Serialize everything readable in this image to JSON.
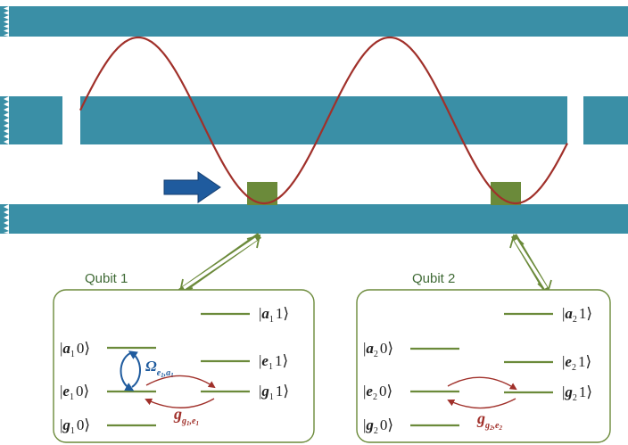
{
  "colors": {
    "waveguide": "#3a8fa6",
    "wave": "#a0302a",
    "atom": "#6b8a3a",
    "arrow_blue": "#1f5b9e",
    "box_border": "#6b8a3a",
    "level": "#6b8a3a",
    "omega_color": "#1f5b9e",
    "g_color": "#a0302a"
  },
  "icons": {
    "input_arrow": "right-arrow-icon",
    "coupling_arrow": "double-headed-arrow-icon"
  },
  "qubit1": {
    "title": "Qubit 1",
    "levels": {
      "a1": {
        "symbol": "a",
        "sub": "1",
        "photons": "1"
      },
      "a0": {
        "symbol": "a",
        "sub": "1",
        "photons": "0"
      },
      "e1": {
        "symbol": "e",
        "sub": "1",
        "photons": "1"
      },
      "e0": {
        "symbol": "e",
        "sub": "1",
        "photons": "0"
      },
      "g1": {
        "symbol": "g",
        "sub": "1",
        "photons": "1"
      },
      "g0": {
        "symbol": "g",
        "sub": "1",
        "photons": "0"
      }
    },
    "omega": {
      "symbol": "Ω",
      "sub": "e",
      "sub_i": "1",
      "sub2": "a",
      "sub2_i": "1"
    },
    "coupling": {
      "symbol": "g",
      "sub": "g",
      "sub_i": "1",
      "sub2": "e",
      "sub2_i": "1"
    }
  },
  "qubit2": {
    "title": "Qubit 2",
    "levels": {
      "a1": {
        "symbol": "a",
        "sub": "2",
        "photons": "1"
      },
      "a0": {
        "symbol": "a",
        "sub": "2",
        "photons": "0"
      },
      "e1": {
        "symbol": "e",
        "sub": "2",
        "photons": "1"
      },
      "e0": {
        "symbol": "e",
        "sub": "2",
        "photons": "0"
      },
      "g1": {
        "symbol": "g",
        "sub": "2",
        "photons": "1"
      },
      "g0": {
        "symbol": "g",
        "sub": "2",
        "photons": "0"
      }
    },
    "coupling": {
      "symbol": "g",
      "sub": "g",
      "sub_i": "2",
      "sub2": "e",
      "sub2_i": "2"
    }
  }
}
